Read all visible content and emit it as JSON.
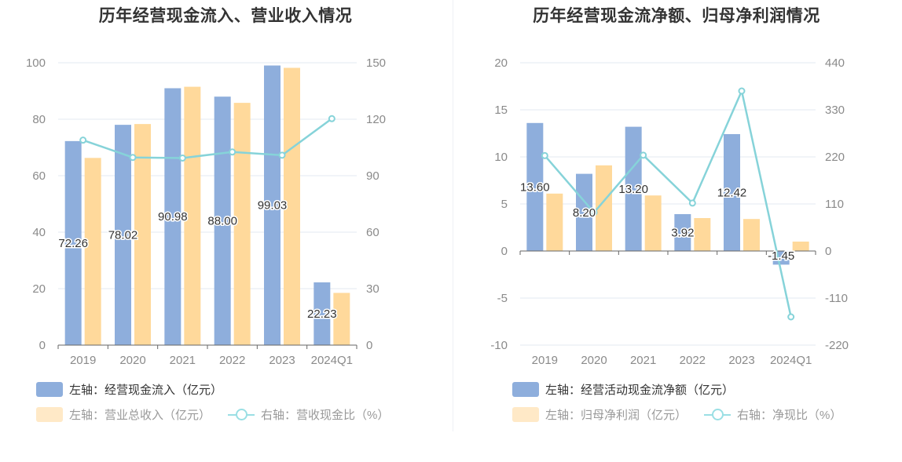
{
  "colors": {
    "bar_blue": "#8eaedc",
    "bar_yellow": "#ffd99b",
    "line_cyan": "#86d3d9",
    "grid": "#e3e8f2",
    "axis": "#666666"
  },
  "chart_data": [
    {
      "type": "bar",
      "title": "历年经营现金流入、营业收入情况",
      "categories": [
        "2019",
        "2020",
        "2021",
        "2022",
        "2023",
        "2024Q1"
      ],
      "y_left": {
        "min": 0,
        "max": 100,
        "ticks": [
          "0",
          "20",
          "40",
          "60",
          "80",
          "100"
        ]
      },
      "y_right": {
        "min": 0,
        "max": 150,
        "ticks": [
          "0",
          "30",
          "60",
          "90",
          "120",
          "150"
        ]
      },
      "grid": true,
      "series": [
        {
          "name": "经营现金流入",
          "axis": "left",
          "kind": "bar",
          "color": "#8eaedc",
          "values": [
            72.26,
            78.02,
            90.98,
            88.0,
            99.03,
            22.23
          ],
          "labels": [
            "72.26",
            "78.02",
            "90.98",
            "88.00",
            "99.03",
            "22.23"
          ]
        },
        {
          "name": "营业总收入",
          "axis": "left",
          "kind": "bar",
          "color": "#ffd99b",
          "values": [
            66.3,
            78.3,
            91.5,
            85.8,
            98.2,
            18.5
          ]
        },
        {
          "name": "营收现金比",
          "axis": "right",
          "kind": "line",
          "color": "#86d3d9",
          "values": [
            108.9,
            99.7,
            99.4,
            102.6,
            100.9,
            120.3
          ]
        }
      ],
      "legend": [
        {
          "text": "左轴：经营现金流入（亿元）",
          "kind": "bar",
          "color": "#8eaedc",
          "muted": false
        },
        {
          "text": "左轴：营业总收入（亿元）",
          "kind": "bar",
          "color": "#ffe9c7",
          "muted": true
        },
        {
          "text": "右轴：营收现金比（%）",
          "kind": "line",
          "color": "#9adfe4",
          "muted": true
        }
      ]
    },
    {
      "type": "bar",
      "title": "历年经营现金流净额、归母净利润情况",
      "categories": [
        "2019",
        "2020",
        "2021",
        "2022",
        "2023",
        "2024Q1"
      ],
      "y_left": {
        "min": -10,
        "max": 20,
        "ticks": [
          "-10",
          "-5",
          "0",
          "5",
          "10",
          "15",
          "20"
        ]
      },
      "y_right": {
        "min": -220,
        "max": 440,
        "ticks": [
          "-220",
          "-110",
          "0",
          "110",
          "220",
          "330",
          "440"
        ]
      },
      "grid": true,
      "series": [
        {
          "name": "经营活动现金流净额",
          "axis": "left",
          "kind": "bar",
          "color": "#8eaedc",
          "values": [
            13.6,
            8.2,
            13.2,
            3.92,
            12.42,
            -1.45
          ],
          "labels": [
            "13.60",
            "8.20",
            "13.20",
            "3.92",
            "12.42",
            "-1.45"
          ]
        },
        {
          "name": "归母净利润",
          "axis": "left",
          "kind": "bar",
          "color": "#ffd99b",
          "values": [
            6.1,
            9.1,
            5.9,
            3.5,
            3.4,
            1.0
          ]
        },
        {
          "name": "净现比",
          "axis": "right",
          "kind": "line",
          "color": "#86d3d9",
          "values": [
            223,
            90,
            224,
            112,
            374,
            -154
          ]
        }
      ],
      "legend": [
        {
          "text": "左轴：经营活动现金流净额（亿元）",
          "kind": "bar",
          "color": "#8eaedc",
          "muted": false
        },
        {
          "text": "左轴：归母净利润（亿元）",
          "kind": "bar",
          "color": "#ffe9c7",
          "muted": true
        },
        {
          "text": "右轴：净现比（%）",
          "kind": "line",
          "color": "#9adfe4",
          "muted": true
        }
      ]
    }
  ]
}
